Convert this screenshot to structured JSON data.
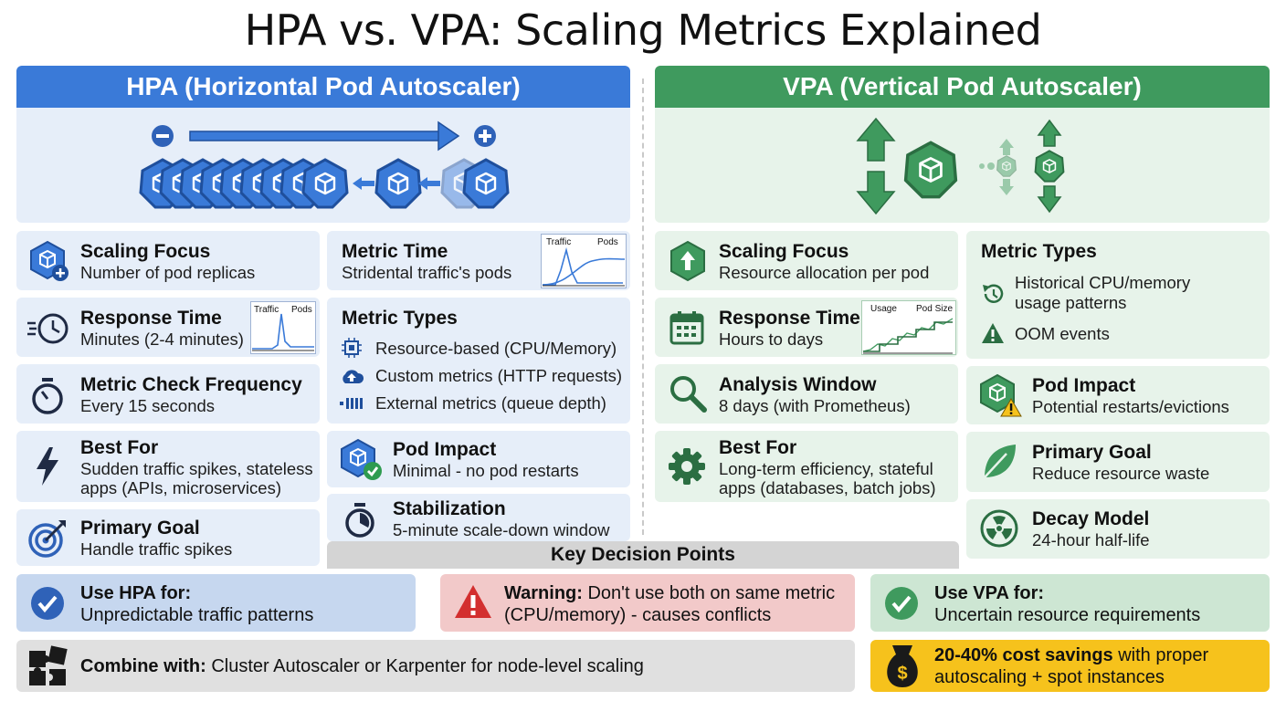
{
  "title": "HPA vs. VPA: Scaling Metrics Explained",
  "colors": {
    "hpa_blue": "#3a7ad8",
    "vpa_green": "#3f9a5e",
    "hpa_bg": "#e6eef9",
    "vpa_bg": "#e7f3ea",
    "warning_bg": "#f2c9c9",
    "warning_red": "#d32f2f",
    "savings_yellow": "#f6c21c",
    "neutral_gray": "#e0e0e0"
  },
  "hpa": {
    "header": "HPA (Horizontal Pod Autoscaler)",
    "cards": {
      "scaling_focus": {
        "title": "Scaling Focus",
        "text": "Number of pod replicas",
        "icon": "cube-plus-icon"
      },
      "response_time": {
        "title": "Response Time",
        "text": "Minutes (2-4 minutes)",
        "icon": "fast-clock-icon",
        "chart_labels": [
          "Traffic",
          "Pods"
        ]
      },
      "check_frequency": {
        "title": "Metric Check Frequency",
        "text": "Every 15 seconds",
        "icon": "stopwatch-icon"
      },
      "best_for": {
        "title": "Best For",
        "text_line1": "Sudden traffic spikes, stateless",
        "text_line2": "apps (APIs, microservices)",
        "icon": "lightning-icon"
      },
      "primary_goal": {
        "title": "Primary Goal",
        "text": "Handle traffic spikes",
        "icon": "target-icon"
      },
      "metric_time": {
        "title": "Metric Time",
        "text": "Stridental traffic's pods",
        "chart_labels": [
          "Traffic",
          "Pods"
        ]
      },
      "metric_types": {
        "title": "Metric Types",
        "items": [
          {
            "text": "Resource-based (CPU/Memory)",
            "icon": "chip-icon"
          },
          {
            "text": "Custom metrics (HTTP requests)",
            "icon": "cloud-upload-icon"
          },
          {
            "text": "External metrics (queue depth)",
            "icon": "queue-icon"
          }
        ]
      },
      "pod_impact": {
        "title": "Pod Impact",
        "text": "Minimal - no pod restarts",
        "icon": "pod-check-icon"
      },
      "stabilization": {
        "title": "Stabilization",
        "text": "5-minute scale-down window",
        "icon": "timer-icon"
      }
    }
  },
  "vpa": {
    "header": "VPA (Vertical Pod Autoscaler)",
    "cards": {
      "scaling_focus": {
        "title": "Scaling Focus",
        "text": "Resource allocation per pod",
        "icon": "arrow-up-hexagon-icon"
      },
      "response_time": {
        "title": "Response Time",
        "text": "Hours to days",
        "icon": "calendar-icon",
        "chart_labels": [
          "Usage",
          "Pod Size"
        ]
      },
      "analysis_window": {
        "title": "Analysis Window",
        "text": "8 days (with Prometheus)",
        "icon": "magnifier-icon"
      },
      "best_for": {
        "title": "Best For",
        "text_line1": "Long-term efficiency, stateful",
        "text_line2": "apps (databases, batch jobs)",
        "icon": "gear-icon"
      },
      "metric_types": {
        "title": "Metric Types",
        "items": [
          {
            "text_line1": "Historical CPU/memory",
            "text_line2": "usage patterns",
            "icon": "history-icon"
          },
          {
            "text": "OOM events",
            "icon": "warning-triangle-icon"
          }
        ]
      },
      "pod_impact": {
        "title": "Pod Impact",
        "text": "Potential restarts/evictions",
        "icon": "pod-warning-icon"
      },
      "primary_goal": {
        "title": "Primary Goal",
        "text": "Reduce resource waste",
        "icon": "leaf-icon"
      },
      "decay_model": {
        "title": "Decay Model",
        "text": "24-hour half-life",
        "icon": "radiation-icon"
      }
    }
  },
  "key_decision_points": {
    "heading": "Key Decision Points",
    "use_hpa": {
      "bold": "Use HPA for:",
      "text": "Unpredictable traffic patterns",
      "icon": "check-circle-icon"
    },
    "warning": {
      "bold": "Warning:",
      "text_line1_rest": " Don't use both on same metric",
      "text_line2": "(CPU/memory) - causes conflicts",
      "icon": "warning-icon"
    },
    "use_vpa": {
      "bold": "Use VPA for:",
      "text": "Uncertain resource requirements",
      "icon": "check-circle-icon"
    },
    "combine": {
      "bold": "Combine with:",
      "text": " Cluster Autoscaler or Karpenter for node-level scaling",
      "icon": "puzzle-icon"
    },
    "savings": {
      "bold": "20-40% cost savings",
      "text_line1_rest": " with proper",
      "text_line2": "autoscaling + spot instances",
      "icon": "money-bag-icon"
    }
  }
}
